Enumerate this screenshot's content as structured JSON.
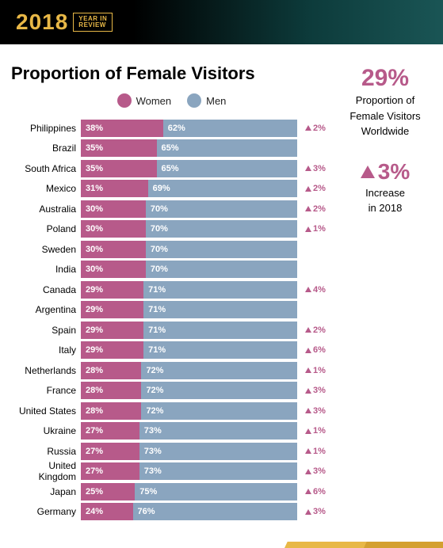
{
  "header": {
    "year": "2018",
    "tag_line1": "YEAR IN",
    "tag_line2": "REVIEW"
  },
  "colors": {
    "women": "#b75a8a",
    "men": "#8aa5bf",
    "change": "#b75a8a",
    "header_gold": "#e8b847"
  },
  "chart": {
    "title": "Proportion of Female Visitors",
    "legend": {
      "women": "Women",
      "men": "Men"
    },
    "rows": [
      {
        "country": "Philippines",
        "women": 38,
        "men": 62,
        "change": 2
      },
      {
        "country": "Brazil",
        "women": 35,
        "men": 65,
        "change": null
      },
      {
        "country": "South Africa",
        "women": 35,
        "men": 65,
        "change": 3
      },
      {
        "country": "Mexico",
        "women": 31,
        "men": 69,
        "change": 2
      },
      {
        "country": "Australia",
        "women": 30,
        "men": 70,
        "change": 2
      },
      {
        "country": "Poland",
        "women": 30,
        "men": 70,
        "change": 1
      },
      {
        "country": "Sweden",
        "women": 30,
        "men": 70,
        "change": null
      },
      {
        "country": "India",
        "women": 30,
        "men": 70,
        "change": null
      },
      {
        "country": "Canada",
        "women": 29,
        "men": 71,
        "change": 4
      },
      {
        "country": "Argentina",
        "women": 29,
        "men": 71,
        "change": null
      },
      {
        "country": "Spain",
        "women": 29,
        "men": 71,
        "change": 2
      },
      {
        "country": "Italy",
        "women": 29,
        "men": 71,
        "change": 6
      },
      {
        "country": "Netherlands",
        "women": 28,
        "men": 72,
        "change": 1
      },
      {
        "country": "France",
        "women": 28,
        "men": 72,
        "change": 3
      },
      {
        "country": "United States",
        "women": 28,
        "men": 72,
        "change": 3
      },
      {
        "country": "Ukraine",
        "women": 27,
        "men": 73,
        "change": 1
      },
      {
        "country": "Russia",
        "women": 27,
        "men": 73,
        "change": 1
      },
      {
        "country": "United Kingdom",
        "women": 27,
        "men": 73,
        "change": 3
      },
      {
        "country": "Japan",
        "women": 25,
        "men": 75,
        "change": 6
      },
      {
        "country": "Germany",
        "women": 24,
        "men": 76,
        "change": 3
      }
    ]
  },
  "sidebar": {
    "worldwide_pct": "29%",
    "worldwide_text1": "Proportion of",
    "worldwide_text2": "Female Visitors",
    "worldwide_text3": "Worldwide",
    "increase_pct": "3%",
    "increase_text1": "Increase",
    "increase_text2": "in 2018"
  }
}
